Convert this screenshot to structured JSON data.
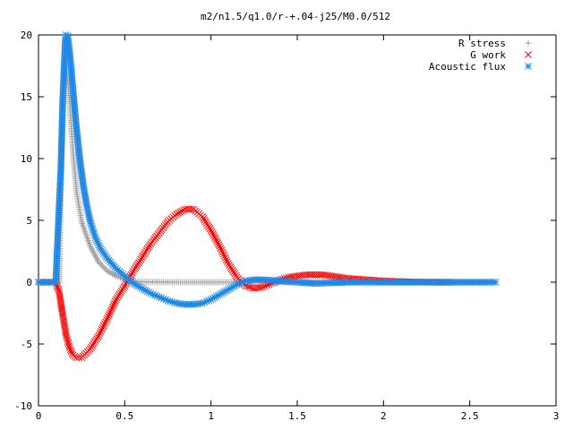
{
  "chart_data": {
    "type": "scatter",
    "title": "m2/n1.5/q1.0/r-+.04-j25/M0.0/512",
    "xlabel": "",
    "ylabel": "",
    "xlim": [
      0,
      3
    ],
    "ylim": [
      -10,
      20
    ],
    "xticks": [
      "0",
      "0.5",
      "1",
      "1.5",
      "2",
      "2.5",
      "3"
    ],
    "yticks": [
      "-10",
      "-5",
      "0",
      "5",
      "10",
      "15",
      "20"
    ],
    "xtick_values": [
      0,
      0.5,
      1,
      1.5,
      2,
      2.5,
      3
    ],
    "ytick_values": [
      -10,
      -5,
      0,
      5,
      10,
      15,
      20
    ],
    "grid": false,
    "legend_position": "top-right",
    "series": [
      {
        "name": "R stress",
        "marker": "plus",
        "color": "#a0a0a0",
        "points": [
          [
            0.0,
            0
          ],
          [
            0.05,
            0
          ],
          [
            0.1,
            0
          ],
          [
            0.12,
            0
          ],
          [
            0.125,
            4.8
          ],
          [
            0.13,
            8.1
          ],
          [
            0.135,
            11.0
          ],
          [
            0.14,
            13.3
          ],
          [
            0.145,
            15.1
          ],
          [
            0.15,
            16.4
          ],
          [
            0.155,
            17.0
          ],
          [
            0.16,
            17.2
          ],
          [
            0.17,
            16.3
          ],
          [
            0.18,
            14.6
          ],
          [
            0.19,
            12.6
          ],
          [
            0.2,
            10.6
          ],
          [
            0.22,
            7.4
          ],
          [
            0.25,
            4.9
          ],
          [
            0.3,
            2.9
          ],
          [
            0.35,
            1.6
          ],
          [
            0.4,
            0.9
          ],
          [
            0.45,
            0.5
          ],
          [
            0.5,
            0.2
          ],
          [
            0.55,
            0.08
          ],
          [
            0.6,
            0.03
          ],
          [
            0.7,
            0.01
          ],
          [
            0.8,
            0
          ],
          [
            1.0,
            0
          ],
          [
            1.5,
            0
          ],
          [
            2.0,
            0
          ],
          [
            2.4,
            0
          ]
        ]
      },
      {
        "name": "G work",
        "marker": "cross",
        "color": "#ff0000",
        "points": [
          [
            0.0,
            0
          ],
          [
            0.1,
            0
          ],
          [
            0.12,
            -0.8
          ],
          [
            0.14,
            -2.6
          ],
          [
            0.16,
            -4.3
          ],
          [
            0.18,
            -5.3
          ],
          [
            0.2,
            -5.9
          ],
          [
            0.22,
            -6.1
          ],
          [
            0.25,
            -6.1
          ],
          [
            0.3,
            -5.4
          ],
          [
            0.35,
            -4.3
          ],
          [
            0.4,
            -2.9
          ],
          [
            0.45,
            -1.4
          ],
          [
            0.5,
            -0.3
          ],
          [
            0.55,
            0.9
          ],
          [
            0.6,
            2.0
          ],
          [
            0.65,
            3.1
          ],
          [
            0.7,
            4.0
          ],
          [
            0.75,
            4.9
          ],
          [
            0.8,
            5.5
          ],
          [
            0.85,
            5.9
          ],
          [
            0.9,
            5.9
          ],
          [
            0.95,
            5.3
          ],
          [
            1.0,
            4.2
          ],
          [
            1.05,
            2.9
          ],
          [
            1.1,
            1.5
          ],
          [
            1.15,
            0.4
          ],
          [
            1.2,
            -0.3
          ],
          [
            1.25,
            -0.5
          ],
          [
            1.3,
            -0.4
          ],
          [
            1.35,
            -0.1
          ],
          [
            1.4,
            0.2
          ],
          [
            1.45,
            0.4
          ],
          [
            1.5,
            0.5
          ],
          [
            1.55,
            0.6
          ],
          [
            1.6,
            0.6
          ],
          [
            1.65,
            0.6
          ],
          [
            1.7,
            0.5
          ],
          [
            1.8,
            0.3
          ],
          [
            1.9,
            0.2
          ],
          [
            2.0,
            0.1
          ],
          [
            2.1,
            0.05
          ],
          [
            2.2,
            0.02
          ],
          [
            2.3,
            0
          ],
          [
            2.4,
            0
          ]
        ]
      },
      {
        "name": "Acoustic flux",
        "marker": "star",
        "color": "#1e88e5",
        "points": [
          [
            0.0,
            0
          ],
          [
            0.05,
            0
          ],
          [
            0.1,
            0
          ],
          [
            0.12,
            6.3
          ],
          [
            0.13,
            9.3
          ],
          [
            0.14,
            14.6
          ],
          [
            0.15,
            17.9
          ],
          [
            0.155,
            19.5
          ],
          [
            0.16,
            20.0
          ],
          [
            0.17,
            19.9
          ],
          [
            0.18,
            18.7
          ],
          [
            0.19,
            17.2
          ],
          [
            0.2,
            15.6
          ],
          [
            0.21,
            14.0
          ],
          [
            0.22,
            12.5
          ],
          [
            0.24,
            9.9
          ],
          [
            0.26,
            7.8
          ],
          [
            0.28,
            6.2
          ],
          [
            0.3,
            4.9
          ],
          [
            0.33,
            3.6
          ],
          [
            0.36,
            2.7
          ],
          [
            0.4,
            1.9
          ],
          [
            0.45,
            1.1
          ],
          [
            0.5,
            0.5
          ],
          [
            0.55,
            -0.1
          ],
          [
            0.6,
            -0.5
          ],
          [
            0.65,
            -0.9
          ],
          [
            0.7,
            -1.2
          ],
          [
            0.75,
            -1.5
          ],
          [
            0.8,
            -1.7
          ],
          [
            0.85,
            -1.8
          ],
          [
            0.9,
            -1.8
          ],
          [
            0.95,
            -1.7
          ],
          [
            1.0,
            -1.4
          ],
          [
            1.05,
            -1.0
          ],
          [
            1.1,
            -0.6
          ],
          [
            1.15,
            -0.2
          ],
          [
            1.2,
            0.1
          ],
          [
            1.25,
            0.2
          ],
          [
            1.3,
            0.2
          ],
          [
            1.4,
            0.1
          ],
          [
            1.5,
            0
          ],
          [
            1.6,
            -0.1
          ],
          [
            1.7,
            -0.05
          ],
          [
            1.8,
            0
          ],
          [
            2.0,
            0
          ],
          [
            2.2,
            0
          ],
          [
            2.4,
            0
          ],
          [
            2.6,
            0
          ],
          [
            2.65,
            0
          ]
        ]
      }
    ]
  }
}
